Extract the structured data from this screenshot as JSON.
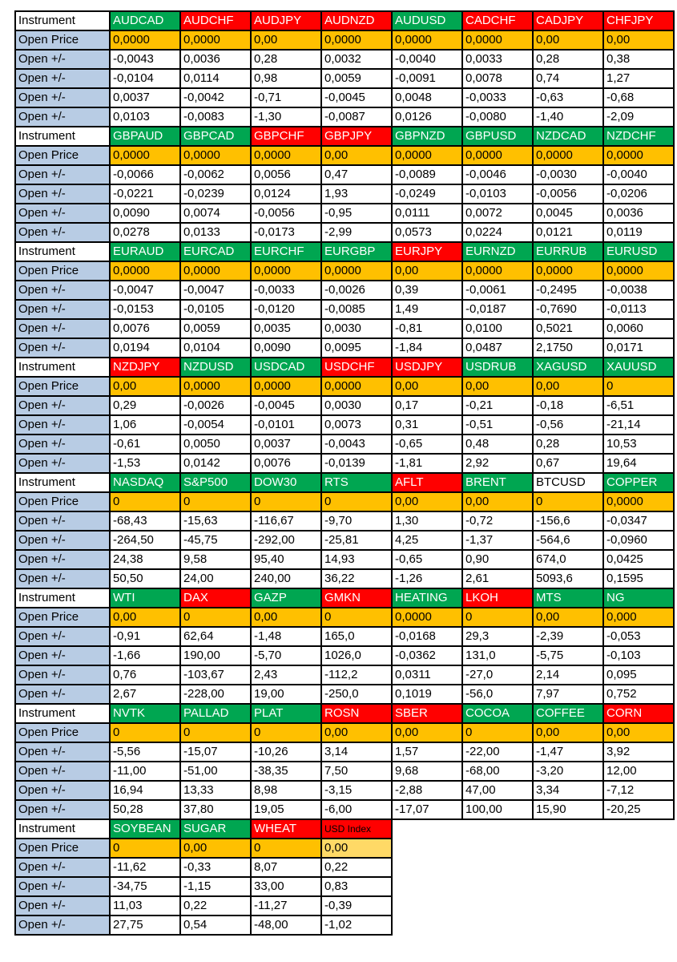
{
  "labels": {
    "instrument": "Instrument",
    "open_price": "Open Price",
    "open_change": "Open +/-"
  },
  "colors": {
    "header_green": "#00A651",
    "header_red": "#FF0000",
    "header_white": "#FFFFFF",
    "open_price_bg": "#FFC000",
    "open_price_light_bg": "#FFD966",
    "row_label_bg": "#B8CCE4",
    "border": "#000000",
    "page_bg": "#FFFFFF"
  },
  "blocks": [
    {
      "instruments": [
        {
          "name": "AUDCAD",
          "color": "green",
          "open": "0,0000",
          "changes": [
            "-0,0043",
            "-0,0104",
            "0,0037",
            "0,0103"
          ]
        },
        {
          "name": "AUDCHF",
          "color": "red",
          "open": "0,0000",
          "changes": [
            "0,0036",
            "0,0114",
            "-0,0042",
            "-0,0083"
          ]
        },
        {
          "name": "AUDJPY",
          "color": "red",
          "open": "0,00",
          "changes": [
            "0,28",
            "0,98",
            "-0,71",
            "-1,30"
          ]
        },
        {
          "name": "AUDNZD",
          "color": "red",
          "open": "0,0000",
          "changes": [
            "0,0032",
            "0,0059",
            "-0,0045",
            "-0,0087"
          ]
        },
        {
          "name": "AUDUSD",
          "color": "green",
          "open": "0,0000",
          "changes": [
            "-0,0040",
            "-0,0091",
            "0,0048",
            "0,0126"
          ]
        },
        {
          "name": "CADCHF",
          "color": "red",
          "open": "0,0000",
          "changes": [
            "0,0033",
            "0,0078",
            "-0,0033",
            "-0,0080"
          ]
        },
        {
          "name": "CADJPY",
          "color": "red",
          "open": "0,00",
          "changes": [
            "0,28",
            "0,74",
            "-0,63",
            "-1,40"
          ]
        },
        {
          "name": "CHFJPY",
          "color": "red",
          "open": "0,00",
          "changes": [
            "0,38",
            "1,27",
            "-0,68",
            "-2,09"
          ]
        }
      ]
    },
    {
      "instruments": [
        {
          "name": "GBPAUD",
          "color": "green",
          "open": "0,0000",
          "changes": [
            "-0,0066",
            "-0,0221",
            "0,0090",
            "0,0278"
          ]
        },
        {
          "name": "GBPCAD",
          "color": "green",
          "open": "0,0000",
          "changes": [
            "-0,0062",
            "-0,0239",
            "0,0074",
            "0,0133"
          ]
        },
        {
          "name": "GBPCHF",
          "color": "red",
          "open": "0,0000",
          "changes": [
            "0,0056",
            "0,0124",
            "-0,0056",
            "-0,0173"
          ]
        },
        {
          "name": "GBPJPY",
          "color": "red",
          "open": "0,00",
          "changes": [
            "0,47",
            "1,93",
            "-0,95",
            "-2,99"
          ]
        },
        {
          "name": "GBPNZD",
          "color": "green",
          "open": "0,0000",
          "changes": [
            "-0,0089",
            "-0,0249",
            "0,0111",
            "0,0573"
          ]
        },
        {
          "name": "GBPUSD",
          "color": "green",
          "open": "0,0000",
          "changes": [
            "-0,0046",
            "-0,0103",
            "0,0072",
            "0,0224"
          ]
        },
        {
          "name": "NZDCAD",
          "color": "green",
          "open": "0,0000",
          "changes": [
            "-0,0030",
            "-0,0056",
            "0,0045",
            "0,0121"
          ]
        },
        {
          "name": "NZDCHF",
          "color": "green",
          "open": "0,0000",
          "changes": [
            "-0,0040",
            "-0,0206",
            "0,0036",
            "0,0119"
          ]
        }
      ]
    },
    {
      "instruments": [
        {
          "name": "EURAUD",
          "color": "green",
          "open": "0,0000",
          "changes": [
            "-0,0047",
            "-0,0153",
            "0,0076",
            "0,0194"
          ]
        },
        {
          "name": "EURCAD",
          "color": "green",
          "open": "0,0000",
          "changes": [
            "-0,0047",
            "-0,0105",
            "0,0059",
            "0,0104"
          ]
        },
        {
          "name": "EURCHF",
          "color": "green",
          "open": "0,0000",
          "changes": [
            "-0,0033",
            "-0,0120",
            "0,0035",
            "0,0090"
          ]
        },
        {
          "name": "EURGBP",
          "color": "green",
          "open": "0,0000",
          "changes": [
            "-0,0026",
            "-0,0085",
            "0,0030",
            "0,0095"
          ]
        },
        {
          "name": "EURJPY",
          "color": "red",
          "open": "0,00",
          "changes": [
            "0,39",
            "1,49",
            "-0,81",
            "-1,84"
          ]
        },
        {
          "name": "EURNZD",
          "color": "green",
          "open": "0,0000",
          "changes": [
            "-0,0061",
            "-0,0187",
            "0,0100",
            "0,0487"
          ]
        },
        {
          "name": "EURRUB",
          "color": "green",
          "open": "0,0000",
          "changes": [
            "-0,2495",
            "-0,7690",
            "0,5021",
            "2,1750"
          ]
        },
        {
          "name": "EURUSD",
          "color": "green",
          "open": "0,0000",
          "changes": [
            "-0,0038",
            "-0,0113",
            "0,0060",
            "0,0171"
          ]
        }
      ]
    },
    {
      "instruments": [
        {
          "name": "NZDJPY",
          "color": "red",
          "open": "0,00",
          "changes": [
            "0,29",
            "1,06",
            "-0,61",
            "-1,53"
          ]
        },
        {
          "name": "NZDUSD",
          "color": "green",
          "open": "0,0000",
          "changes": [
            "-0,0026",
            "-0,0054",
            "0,0050",
            "0,0142"
          ]
        },
        {
          "name": "USDCAD",
          "color": "green",
          "open": "0,0000",
          "changes": [
            "-0,0045",
            "-0,0101",
            "0,0037",
            "0,0076"
          ]
        },
        {
          "name": "USDCHF",
          "color": "red",
          "open": "0,0000",
          "changes": [
            "0,0030",
            "0,0073",
            "-0,0043",
            "-0,0139"
          ]
        },
        {
          "name": "USDJPY",
          "color": "red",
          "open": "0,00",
          "changes": [
            "0,17",
            "0,31",
            "-0,65",
            "-1,81"
          ]
        },
        {
          "name": "USDRUB",
          "color": "green",
          "open": "0,00",
          "changes": [
            "-0,21",
            "-0,51",
            "0,48",
            "2,92"
          ]
        },
        {
          "name": "XAGUSD",
          "color": "green",
          "open": "0,00",
          "changes": [
            "-0,18",
            "-0,56",
            "0,28",
            "0,67"
          ]
        },
        {
          "name": "XAUUSD",
          "color": "green",
          "open": "0",
          "changes": [
            "-6,51",
            "-21,14",
            "10,53",
            "19,64"
          ]
        }
      ]
    },
    {
      "instruments": [
        {
          "name": "NASDAQ",
          "color": "green",
          "open": "0",
          "changes": [
            "-68,43",
            "-264,50",
            "24,38",
            "50,50"
          ]
        },
        {
          "name": "S&P500",
          "color": "green",
          "open": "0",
          "changes": [
            "-15,63",
            "-45,75",
            "9,58",
            "24,00"
          ]
        },
        {
          "name": "DOW30",
          "color": "green",
          "open": "0",
          "changes": [
            "-116,67",
            "-292,00",
            "95,40",
            "240,00"
          ]
        },
        {
          "name": "RTS",
          "color": "green",
          "open": "0",
          "changes": [
            "-9,70",
            "-25,81",
            "14,93",
            "36,22"
          ]
        },
        {
          "name": "AFLT",
          "color": "red",
          "open": "0,00",
          "changes": [
            "1,30",
            "4,25",
            "-0,65",
            "-1,26"
          ]
        },
        {
          "name": "BRENT",
          "color": "green",
          "open": "0,00",
          "changes": [
            "-0,72",
            "-1,37",
            "0,90",
            "2,61"
          ]
        },
        {
          "name": "BTCUSD",
          "color": "white",
          "open": "0",
          "changes": [
            "-156,6",
            "-564,6",
            "674,0",
            "5093,6"
          ]
        },
        {
          "name": "COPPER",
          "color": "green",
          "open": "0,0000",
          "changes": [
            "-0,0347",
            "-0,0960",
            "0,0425",
            "0,1595"
          ]
        }
      ]
    },
    {
      "instruments": [
        {
          "name": "WTI",
          "color": "green",
          "open": "0,00",
          "changes": [
            "-0,91",
            "-1,66",
            "0,76",
            "2,67"
          ]
        },
        {
          "name": "DAX",
          "color": "red",
          "open": "0",
          "changes": [
            "62,64",
            "190,00",
            "-103,67",
            "-228,00"
          ]
        },
        {
          "name": "GAZP",
          "color": "green",
          "open": "0,00",
          "changes": [
            "-1,48",
            "-5,70",
            "2,43",
            "19,00"
          ]
        },
        {
          "name": "GMKN",
          "color": "red",
          "open": "0",
          "changes": [
            "165,0",
            "1026,0",
            "-112,2",
            "-250,0"
          ]
        },
        {
          "name": "HEATING",
          "color": "green",
          "open": "0,0000",
          "changes": [
            "-0,0168",
            "-0,0362",
            "0,0311",
            "0,1019"
          ]
        },
        {
          "name": "LKOH",
          "color": "red",
          "open": "0",
          "changes": [
            "29,3",
            "131,0",
            "-27,0",
            "-56,0"
          ]
        },
        {
          "name": "MTS",
          "color": "green",
          "open": "0,00",
          "changes": [
            "-2,39",
            "-5,75",
            "2,14",
            "7,97"
          ]
        },
        {
          "name": "NG",
          "color": "green",
          "open": "0,000",
          "changes": [
            "-0,053",
            "-0,103",
            "0,095",
            "0,752"
          ]
        }
      ]
    },
    {
      "instruments": [
        {
          "name": "NVTK",
          "color": "green",
          "open": "0",
          "changes": [
            "-5,56",
            "-11,00",
            "16,94",
            "50,28"
          ]
        },
        {
          "name": "PALLAD",
          "color": "green",
          "open": "0",
          "changes": [
            "-15,07",
            "-51,00",
            "13,33",
            "37,80"
          ]
        },
        {
          "name": "PLAT",
          "color": "green",
          "open": "0",
          "changes": [
            "-10,26",
            "-38,35",
            "8,98",
            "19,05"
          ]
        },
        {
          "name": "ROSN",
          "color": "red",
          "open": "0,00",
          "changes": [
            "3,14",
            "7,50",
            "-3,15",
            "-6,00"
          ]
        },
        {
          "name": "SBER",
          "color": "red",
          "open": "0,00",
          "changes": [
            "1,57",
            "9,68",
            "-2,88",
            "-17,07"
          ]
        },
        {
          "name": "COCOA",
          "color": "green",
          "open": "0",
          "changes": [
            "-22,00",
            "-68,00",
            "47,00",
            "100,00"
          ]
        },
        {
          "name": "COFFEE",
          "color": "green",
          "open": "0,00",
          "changes": [
            "-1,47",
            "-3,20",
            "3,34",
            "15,90"
          ]
        },
        {
          "name": "CORN",
          "color": "red",
          "open": "0,00",
          "changes": [
            "3,92",
            "12,00",
            "-7,12",
            "-20,25"
          ]
        }
      ]
    },
    {
      "instruments": [
        {
          "name": "SOYBEAN",
          "color": "green",
          "open": "0",
          "changes": [
            "-11,62",
            "-34,75",
            "11,03",
            "27,75"
          ]
        },
        {
          "name": "SUGAR",
          "color": "green",
          "open": "0,00",
          "changes": [
            "-0,33",
            "-1,15",
            "0,22",
            "0,54"
          ]
        },
        {
          "name": "WHEAT",
          "color": "red",
          "open": "0",
          "changes": [
            "8,07",
            "33,00",
            "-11,27",
            "-48,00"
          ]
        },
        {
          "name": "USD Index",
          "color": "red",
          "text_color": "black",
          "small": true,
          "price_light": true,
          "open": "0,00",
          "changes": [
            "0,22",
            "0,83",
            "-0,39",
            "-1,02"
          ]
        }
      ]
    }
  ]
}
